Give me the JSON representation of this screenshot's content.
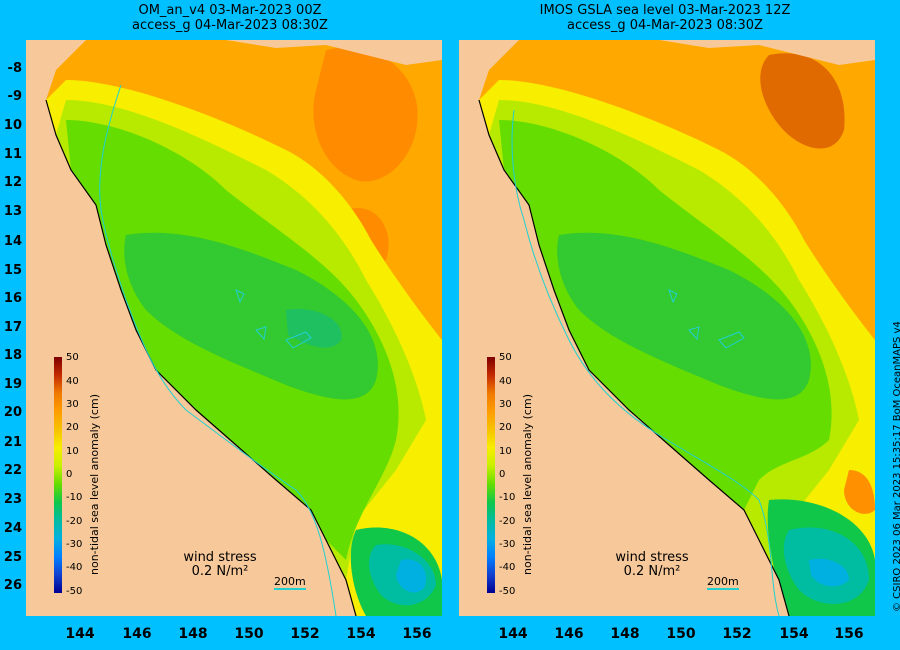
{
  "panels": [
    {
      "title_line1": "OM_an_v4  03-Mar-2023 00Z",
      "title_line2": "access_g 04-Mar-2023 08:30Z"
    },
    {
      "title_line1": "IMOS GSLA sea level  03-Mar-2023 12Z",
      "title_line2": "access_g 04-Mar-2023 08:30Z"
    }
  ],
  "y_axis_labels": [
    "-8",
    "-9",
    "10",
    "11",
    "12",
    "13",
    "14",
    "15",
    "16",
    "17",
    "18",
    "19",
    "20",
    "21",
    "22",
    "23",
    "24",
    "25",
    "26"
  ],
  "x_axis_labels": [
    "144",
    "146",
    "148",
    "150",
    "152",
    "154",
    "156"
  ],
  "colorbar": {
    "title": "non-tidal sea level anomaly (cm)",
    "ticks": [
      "50",
      "40",
      "30",
      "20",
      "10",
      "0",
      "-10",
      "-20",
      "-30",
      "-40",
      "-50"
    ],
    "colors": [
      "#7d0000",
      "#c42a00",
      "#f07a00",
      "#ff9d00",
      "#f7c200",
      "#f7ee00",
      "#c8f000",
      "#66dd00",
      "#11c74a",
      "#00bca0",
      "#00b0e0",
      "#0080ff",
      "#1040d0",
      "#000090"
    ]
  },
  "wind": {
    "label1": "wind stress",
    "label2": "0.2 N/m²"
  },
  "scale_bar": "200m",
  "credit": "© CSIRO 2023   06 Mar 2023 15:35:17 BoM OceanMAPS v4"
}
